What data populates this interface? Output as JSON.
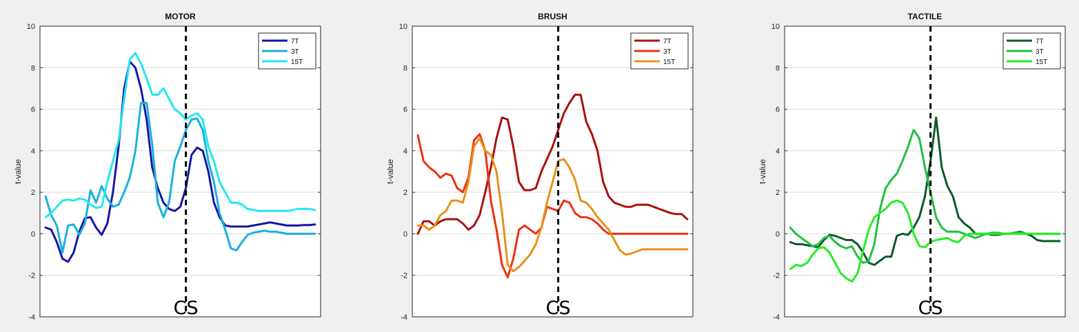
{
  "chart_data": [
    {
      "type": "line",
      "title": "MOTOR",
      "xlabel": "",
      "ylabel": "t-value",
      "ylim": [
        -4,
        10
      ],
      "yticks": [
        -4,
        -2,
        0,
        2,
        4,
        6,
        8,
        10
      ],
      "xlim": [
        0,
        100
      ],
      "grid": true,
      "legend_position": "top-right",
      "marker": {
        "label": "CS",
        "x": 52,
        "style": "dashed"
      },
      "series": [
        {
          "name": "7T",
          "color": "#1515a8",
          "x": [
            2,
            4,
            6,
            8,
            10,
            12,
            14,
            16,
            18,
            20,
            22,
            24,
            26,
            28,
            30,
            32,
            34,
            36,
            38,
            40,
            42,
            44,
            46,
            48,
            50,
            52,
            54,
            56,
            58,
            60,
            62,
            64,
            66,
            68,
            70,
            72,
            74,
            76,
            78,
            80,
            82,
            84,
            86,
            88,
            90,
            92,
            94,
            96,
            98
          ],
          "y": [
            0.3,
            0.2,
            -0.4,
            -1.2,
            -1.35,
            -0.9,
            0.1,
            0.75,
            0.8,
            0.3,
            -0.05,
            0.5,
            2.0,
            4.2,
            7.0,
            8.3,
            8.0,
            7.0,
            5.5,
            3.2,
            2.2,
            1.5,
            1.2,
            1.1,
            1.3,
            2.2,
            3.8,
            4.15,
            4.0,
            3.0,
            1.5,
            0.8,
            0.4,
            0.35,
            0.35,
            0.35,
            0.35,
            0.4,
            0.45,
            0.5,
            0.55,
            0.5,
            0.45,
            0.4,
            0.4,
            0.4,
            0.42,
            0.42,
            0.45
          ]
        },
        {
          "name": "3T",
          "color": "#1ab0dc",
          "x": [
            2,
            4,
            6,
            8,
            10,
            12,
            14,
            16,
            18,
            20,
            22,
            24,
            26,
            28,
            30,
            32,
            34,
            36,
            38,
            40,
            42,
            44,
            46,
            48,
            50,
            52,
            54,
            56,
            58,
            60,
            62,
            64,
            66,
            68,
            70,
            72,
            74,
            76,
            78,
            80,
            82,
            84,
            86,
            88,
            90,
            92,
            94,
            96,
            98
          ],
          "y": [
            1.8,
            0.9,
            0.4,
            -0.9,
            0.4,
            0.45,
            -0.05,
            0.5,
            2.1,
            1.5,
            2.3,
            1.7,
            1.3,
            1.4,
            2.0,
            2.7,
            4.0,
            6.3,
            6.3,
            4.3,
            1.5,
            0.8,
            1.5,
            3.5,
            4.2,
            5.0,
            5.5,
            5.55,
            5.0,
            3.5,
            2.5,
            1.0,
            0.2,
            -0.7,
            -0.8,
            -0.4,
            -0.05,
            0.05,
            0.1,
            0.15,
            0.1,
            0.1,
            0.05,
            0.0,
            0.0,
            0.0,
            0.0,
            0.0,
            0.0
          ]
        },
        {
          "name": "15T",
          "color": "#22e8f0",
          "x": [
            2,
            4,
            6,
            8,
            10,
            12,
            14,
            16,
            18,
            20,
            22,
            24,
            26,
            28,
            30,
            32,
            34,
            36,
            38,
            40,
            42,
            44,
            46,
            48,
            50,
            52,
            54,
            56,
            58,
            60,
            62,
            64,
            66,
            68,
            70,
            72,
            74,
            76,
            78,
            80,
            82,
            84,
            86,
            88,
            90,
            92,
            94,
            96,
            98
          ],
          "y": [
            0.8,
            1.0,
            1.3,
            1.6,
            1.65,
            1.6,
            1.7,
            1.65,
            1.4,
            1.25,
            1.3,
            2.5,
            3.5,
            4.5,
            6.5,
            8.4,
            8.7,
            8.2,
            7.5,
            6.7,
            6.7,
            7.0,
            6.5,
            6.0,
            5.8,
            5.5,
            5.7,
            5.8,
            5.5,
            4.2,
            3.5,
            2.5,
            2.0,
            1.5,
            1.5,
            1.4,
            1.2,
            1.15,
            1.1,
            1.1,
            1.1,
            1.1,
            1.1,
            1.1,
            1.15,
            1.2,
            1.2,
            1.2,
            1.15
          ]
        }
      ]
    },
    {
      "type": "line",
      "title": "BRUSH",
      "xlabel": "",
      "ylabel": "t-value",
      "ylim": [
        -4,
        10
      ],
      "yticks": [
        -4,
        -2,
        0,
        2,
        4,
        6,
        8,
        10
      ],
      "xlim": [
        0,
        100
      ],
      "grid": true,
      "legend_position": "top-right",
      "marker": {
        "label": "CS",
        "x": 52,
        "style": "dashed"
      },
      "series": [
        {
          "name": "7T",
          "color": "#aa1010",
          "x": [
            2,
            4,
            6,
            8,
            10,
            12,
            14,
            16,
            18,
            20,
            22,
            24,
            26,
            28,
            30,
            32,
            34,
            36,
            38,
            40,
            42,
            44,
            46,
            48,
            50,
            52,
            54,
            56,
            58,
            60,
            62,
            64,
            66,
            68,
            70,
            72,
            74,
            76,
            78,
            80,
            82,
            84,
            86,
            88,
            90,
            92,
            94,
            96,
            98
          ],
          "y": [
            0.0,
            0.6,
            0.6,
            0.4,
            0.6,
            0.7,
            0.7,
            0.7,
            0.5,
            0.2,
            0.4,
            0.9,
            2.0,
            3.2,
            4.6,
            5.6,
            5.5,
            4.2,
            2.5,
            2.1,
            2.1,
            2.2,
            3.0,
            3.6,
            4.2,
            5.0,
            5.8,
            6.3,
            6.7,
            6.7,
            5.4,
            4.8,
            4.0,
            2.5,
            1.8,
            1.5,
            1.4,
            1.3,
            1.3,
            1.4,
            1.4,
            1.4,
            1.3,
            1.2,
            1.1,
            1.0,
            0.95,
            0.95,
            0.7
          ]
        },
        {
          "name": "3T",
          "color": "#f03010",
          "x": [
            2,
            4,
            6,
            8,
            10,
            12,
            14,
            16,
            18,
            20,
            22,
            24,
            26,
            28,
            30,
            32,
            34,
            36,
            38,
            40,
            42,
            44,
            46,
            48,
            50,
            52,
            54,
            56,
            58,
            60,
            62,
            64,
            66,
            68,
            70,
            72,
            74,
            76,
            78,
            80,
            82,
            84,
            86,
            88,
            90,
            92,
            94,
            96,
            98
          ],
          "y": [
            4.75,
            3.5,
            3.2,
            3.0,
            2.7,
            2.9,
            2.8,
            2.2,
            2.0,
            2.7,
            4.5,
            4.8,
            4.0,
            1.6,
            0.2,
            -1.5,
            -2.1,
            -1.2,
            0.2,
            0.4,
            0.2,
            0.0,
            0.3,
            1.3,
            1.2,
            1.1,
            1.6,
            1.5,
            1.0,
            0.8,
            0.8,
            0.7,
            0.5,
            0.2,
            0.0,
            0.0,
            0.0,
            0.0,
            0.0,
            0.0,
            0.0,
            0.0,
            0.0,
            0.0,
            0.0,
            0.0,
            0.0,
            0.0,
            0.0
          ]
        },
        {
          "name": "15T",
          "color": "#e89018",
          "x": [
            2,
            4,
            6,
            8,
            10,
            12,
            14,
            16,
            18,
            20,
            22,
            24,
            26,
            28,
            30,
            32,
            34,
            36,
            38,
            40,
            42,
            44,
            46,
            48,
            50,
            52,
            54,
            56,
            58,
            60,
            62,
            64,
            66,
            68,
            70,
            72,
            74,
            76,
            78,
            80,
            82,
            84,
            86,
            88,
            90,
            92,
            94,
            96,
            98
          ],
          "y": [
            0.4,
            0.4,
            0.2,
            0.4,
            0.9,
            1.1,
            1.6,
            1.6,
            1.5,
            2.5,
            4.2,
            4.6,
            4.0,
            3.8,
            3.0,
            1.0,
            -1.5,
            -1.8,
            -1.6,
            -1.3,
            -1.0,
            -0.5,
            0.3,
            1.5,
            2.5,
            3.5,
            3.6,
            3.2,
            2.6,
            1.6,
            1.5,
            1.2,
            0.8,
            0.5,
            0.2,
            -0.3,
            -0.8,
            -1.0,
            -0.95,
            -0.85,
            -0.75,
            -0.75,
            -0.75,
            -0.75,
            -0.75,
            -0.75,
            -0.75,
            -0.75,
            -0.75
          ]
        }
      ]
    },
    {
      "type": "line",
      "title": "TACTILE",
      "xlabel": "",
      "ylabel": "t-value",
      "ylim": [
        -4,
        10
      ],
      "yticks": [
        -4,
        -2,
        0,
        2,
        4,
        6,
        8,
        10
      ],
      "xlim": [
        0,
        100
      ],
      "grid": true,
      "legend_position": "top-right",
      "marker": {
        "label": "CS",
        "x": 52,
        "style": "dashed"
      },
      "series": [
        {
          "name": "7T",
          "color": "#0a5a2a",
          "x": [
            2,
            4,
            6,
            8,
            10,
            12,
            14,
            16,
            18,
            20,
            22,
            24,
            26,
            28,
            30,
            32,
            34,
            36,
            38,
            40,
            42,
            44,
            46,
            48,
            50,
            52,
            54,
            56,
            58,
            60,
            62,
            64,
            66,
            68,
            70,
            72,
            74,
            76,
            78,
            80,
            82,
            84,
            86,
            88,
            90,
            92,
            94,
            96,
            98
          ],
          "y": [
            -0.4,
            -0.5,
            -0.5,
            -0.55,
            -0.6,
            -0.65,
            -0.3,
            -0.05,
            -0.1,
            -0.2,
            -0.3,
            -0.3,
            -0.5,
            -0.9,
            -1.4,
            -1.5,
            -1.3,
            -1.1,
            -1.1,
            -0.1,
            0.0,
            -0.05,
            0.3,
            0.8,
            1.8,
            3.5,
            5.6,
            3.2,
            2.3,
            1.8,
            0.8,
            0.5,
            0.3,
            0.0,
            0.0,
            0.0,
            -0.05,
            -0.05,
            0.0,
            0.0,
            0.05,
            0.1,
            0.0,
            -0.1,
            -0.3,
            -0.35,
            -0.35,
            -0.35,
            -0.35
          ]
        },
        {
          "name": "3T",
          "color": "#20c040",
          "x": [
            2,
            4,
            6,
            8,
            10,
            12,
            14,
            16,
            18,
            20,
            22,
            24,
            26,
            28,
            30,
            32,
            34,
            36,
            38,
            40,
            42,
            44,
            46,
            48,
            50,
            52,
            54,
            56,
            58,
            60,
            62,
            64,
            66,
            68,
            70,
            72,
            74,
            76,
            78,
            80,
            82,
            84,
            86,
            88,
            90,
            92,
            94,
            96,
            98
          ],
          "y": [
            0.3,
            0.0,
            -0.2,
            -0.4,
            -0.6,
            -0.5,
            -0.2,
            -0.1,
            -0.4,
            -0.6,
            -0.7,
            -0.6,
            -1.1,
            -1.4,
            -1.3,
            -0.5,
            1.2,
            2.2,
            2.6,
            2.9,
            3.5,
            4.2,
            5.0,
            4.6,
            3.2,
            2.0,
            0.8,
            0.3,
            0.1,
            0.1,
            0.1,
            0.0,
            -0.1,
            -0.2,
            -0.1,
            0.0,
            0.05,
            0.05,
            0.0,
            0.0,
            0.05,
            0.05,
            0.0,
            0.0,
            0.0,
            0.0,
            0.0,
            0.0,
            0.0
          ]
        },
        {
          "name": "15T",
          "color": "#22f022",
          "x": [
            2,
            4,
            6,
            8,
            10,
            12,
            14,
            16,
            18,
            20,
            22,
            24,
            26,
            28,
            30,
            32,
            34,
            36,
            38,
            40,
            42,
            44,
            46,
            48,
            50,
            52,
            54,
            56,
            58,
            60,
            62,
            64,
            66,
            68,
            70,
            72,
            74,
            76,
            78,
            80,
            82,
            84,
            86,
            88,
            90,
            92,
            94,
            96,
            98
          ],
          "y": [
            -1.7,
            -1.5,
            -1.55,
            -1.4,
            -1.0,
            -0.7,
            -0.65,
            -0.9,
            -1.4,
            -1.9,
            -2.15,
            -2.3,
            -1.9,
            -0.8,
            0.2,
            0.8,
            1.0,
            1.2,
            1.5,
            1.6,
            1.5,
            1.0,
            0.0,
            -0.6,
            -0.65,
            -0.4,
            -0.3,
            -0.25,
            -0.2,
            -0.35,
            -0.4,
            -0.1,
            0.0,
            0.0,
            0.0,
            0.0,
            0.0,
            0.0,
            0.0,
            0.0,
            0.0,
            0.0,
            0.0,
            0.0,
            0.0,
            0.0,
            0.0,
            0.0,
            0.0
          ]
        }
      ]
    }
  ]
}
